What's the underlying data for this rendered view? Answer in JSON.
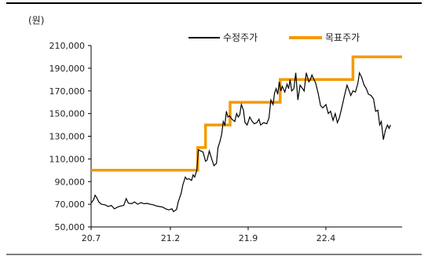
{
  "chart_data": {
    "type": "line",
    "unit_label": "(원)",
    "title": "",
    "xlabel": "",
    "ylabel": "",
    "ylim": [
      50000,
      210000
    ],
    "y_ticks": [
      50000,
      70000,
      90000,
      110000,
      130000,
      150000,
      170000,
      190000,
      210000
    ],
    "y_tick_labels": [
      "50,000",
      "70,000",
      "90,000",
      "110,000",
      "130,000",
      "150,000",
      "170,000",
      "190,000",
      "210,000"
    ],
    "xlim": [
      0,
      100
    ],
    "x_ticks": [
      0,
      25.5,
      50.5,
      75.5
    ],
    "x_tick_labels": [
      "20.7",
      "21.2",
      "21.9",
      "22.4"
    ],
    "legend_position": "top-right",
    "grid": false,
    "series": [
      {
        "name": "수정주가",
        "color": "#000000",
        "style": "price",
        "points": [
          [
            0,
            71000
          ],
          [
            0.8,
            74000
          ],
          [
            1.3,
            78000
          ],
          [
            1.8,
            76000
          ],
          [
            2.5,
            72000
          ],
          [
            3.3,
            70000
          ],
          [
            4.5,
            69500
          ],
          [
            5.5,
            68000
          ],
          [
            6.5,
            69000
          ],
          [
            7.5,
            66000
          ],
          [
            8.5,
            67500
          ],
          [
            9.5,
            68500
          ],
          [
            10.5,
            69000
          ],
          [
            11.3,
            75000
          ],
          [
            12,
            71000
          ],
          [
            13,
            70500
          ],
          [
            14,
            72000
          ],
          [
            15,
            70000
          ],
          [
            16,
            71500
          ],
          [
            17,
            70500
          ],
          [
            18,
            70800
          ],
          [
            19,
            70000
          ],
          [
            20,
            69500
          ],
          [
            21,
            68500
          ],
          [
            22,
            68000
          ],
          [
            23,
            67500
          ],
          [
            24,
            66000
          ],
          [
            25,
            65000
          ],
          [
            26,
            66000
          ],
          [
            26.5,
            63500
          ],
          [
            27.5,
            65500
          ],
          [
            28,
            72000
          ],
          [
            29,
            80000
          ],
          [
            29.5,
            87000
          ],
          [
            30.3,
            94000
          ],
          [
            30.8,
            92000
          ],
          [
            31.5,
            92500
          ],
          [
            32.3,
            91000
          ],
          [
            32.8,
            96000
          ],
          [
            33.3,
            94000
          ],
          [
            34,
            100000
          ],
          [
            34.5,
            118000
          ],
          [
            35.3,
            117000
          ],
          [
            36,
            116000
          ],
          [
            36.8,
            108000
          ],
          [
            37.3,
            109000
          ],
          [
            38,
            117000
          ],
          [
            38.8,
            110000
          ],
          [
            39.5,
            104000
          ],
          [
            40.3,
            106000
          ],
          [
            40.8,
            120000
          ],
          [
            41.5,
            126000
          ],
          [
            42,
            132000
          ],
          [
            42.5,
            143000
          ],
          [
            43,
            140000
          ],
          [
            43.5,
            152000
          ],
          [
            44,
            147000
          ],
          [
            44.5,
            148000
          ],
          [
            45.3,
            145000
          ],
          [
            46.2,
            143000
          ],
          [
            46.8,
            150000
          ],
          [
            47.3,
            147000
          ],
          [
            47.8,
            149000
          ],
          [
            48.3,
            158000
          ],
          [
            49,
            153000
          ],
          [
            49.5,
            142000
          ],
          [
            50.2,
            140000
          ],
          [
            51,
            147000
          ],
          [
            51.8,
            143000
          ],
          [
            52.5,
            141000
          ],
          [
            53.3,
            142000
          ],
          [
            54,
            145000
          ],
          [
            54.5,
            140000
          ],
          [
            55.5,
            142000
          ],
          [
            56.5,
            141000
          ],
          [
            57.2,
            146000
          ],
          [
            57.8,
            162000
          ],
          [
            58.5,
            158000
          ],
          [
            59,
            168000
          ],
          [
            59.5,
            172000
          ],
          [
            60,
            167000
          ],
          [
            60.5,
            178000
          ],
          [
            61,
            170000
          ],
          [
            61.5,
            174000
          ],
          [
            62.3,
            169000
          ],
          [
            63,
            176000
          ],
          [
            63.5,
            172000
          ],
          [
            64,
            180000
          ],
          [
            64.5,
            170000
          ],
          [
            65.2,
            172000
          ],
          [
            65.8,
            186000
          ],
          [
            66.5,
            162000
          ],
          [
            67.2,
            175000
          ],
          [
            68,
            172000
          ],
          [
            68.5,
            170000
          ],
          [
            69.2,
            186000
          ],
          [
            70,
            178000
          ],
          [
            70.5,
            180000
          ],
          [
            71,
            184000
          ],
          [
            71.5,
            181000
          ],
          [
            72.2,
            177000
          ],
          [
            73,
            168000
          ],
          [
            73.8,
            157000
          ],
          [
            74.5,
            155000
          ],
          [
            75.5,
            158000
          ],
          [
            76.3,
            150000
          ],
          [
            77,
            152000
          ],
          [
            77.8,
            144000
          ],
          [
            78.5,
            150000
          ],
          [
            79.2,
            142000
          ],
          [
            79.8,
            146000
          ],
          [
            80.5,
            154000
          ],
          [
            81.5,
            166000
          ],
          [
            82.3,
            175000
          ],
          [
            83,
            170000
          ],
          [
            83.5,
            166000
          ],
          [
            84.2,
            170000
          ],
          [
            85,
            169000
          ],
          [
            85.8,
            177000
          ],
          [
            86.3,
            186000
          ],
          [
            87,
            182000
          ],
          [
            87.8,
            175000
          ],
          [
            88.5,
            172000
          ],
          [
            89.2,
            167000
          ],
          [
            90,
            166000
          ],
          [
            90.8,
            163000
          ],
          [
            91.5,
            152000
          ],
          [
            92.2,
            153000
          ],
          [
            92.8,
            140000
          ],
          [
            93.3,
            143000
          ],
          [
            94,
            127000
          ],
          [
            94.6,
            135000
          ],
          [
            95.3,
            140000
          ],
          [
            95.8,
            137000
          ],
          [
            96.3,
            140000
          ]
        ]
      },
      {
        "name": "목표주가",
        "color": "#F59A00",
        "style": "target",
        "points": [
          [
            0,
            100000
          ],
          [
            34.3,
            100000
          ],
          [
            34.3,
            120000
          ],
          [
            36.8,
            120000
          ],
          [
            36.8,
            140000
          ],
          [
            44.7,
            140000
          ],
          [
            44.7,
            160000
          ],
          [
            60.8,
            160000
          ],
          [
            60.8,
            180000
          ],
          [
            84.2,
            180000
          ],
          [
            84.2,
            200000
          ],
          [
            100,
            200000
          ]
        ]
      }
    ]
  }
}
